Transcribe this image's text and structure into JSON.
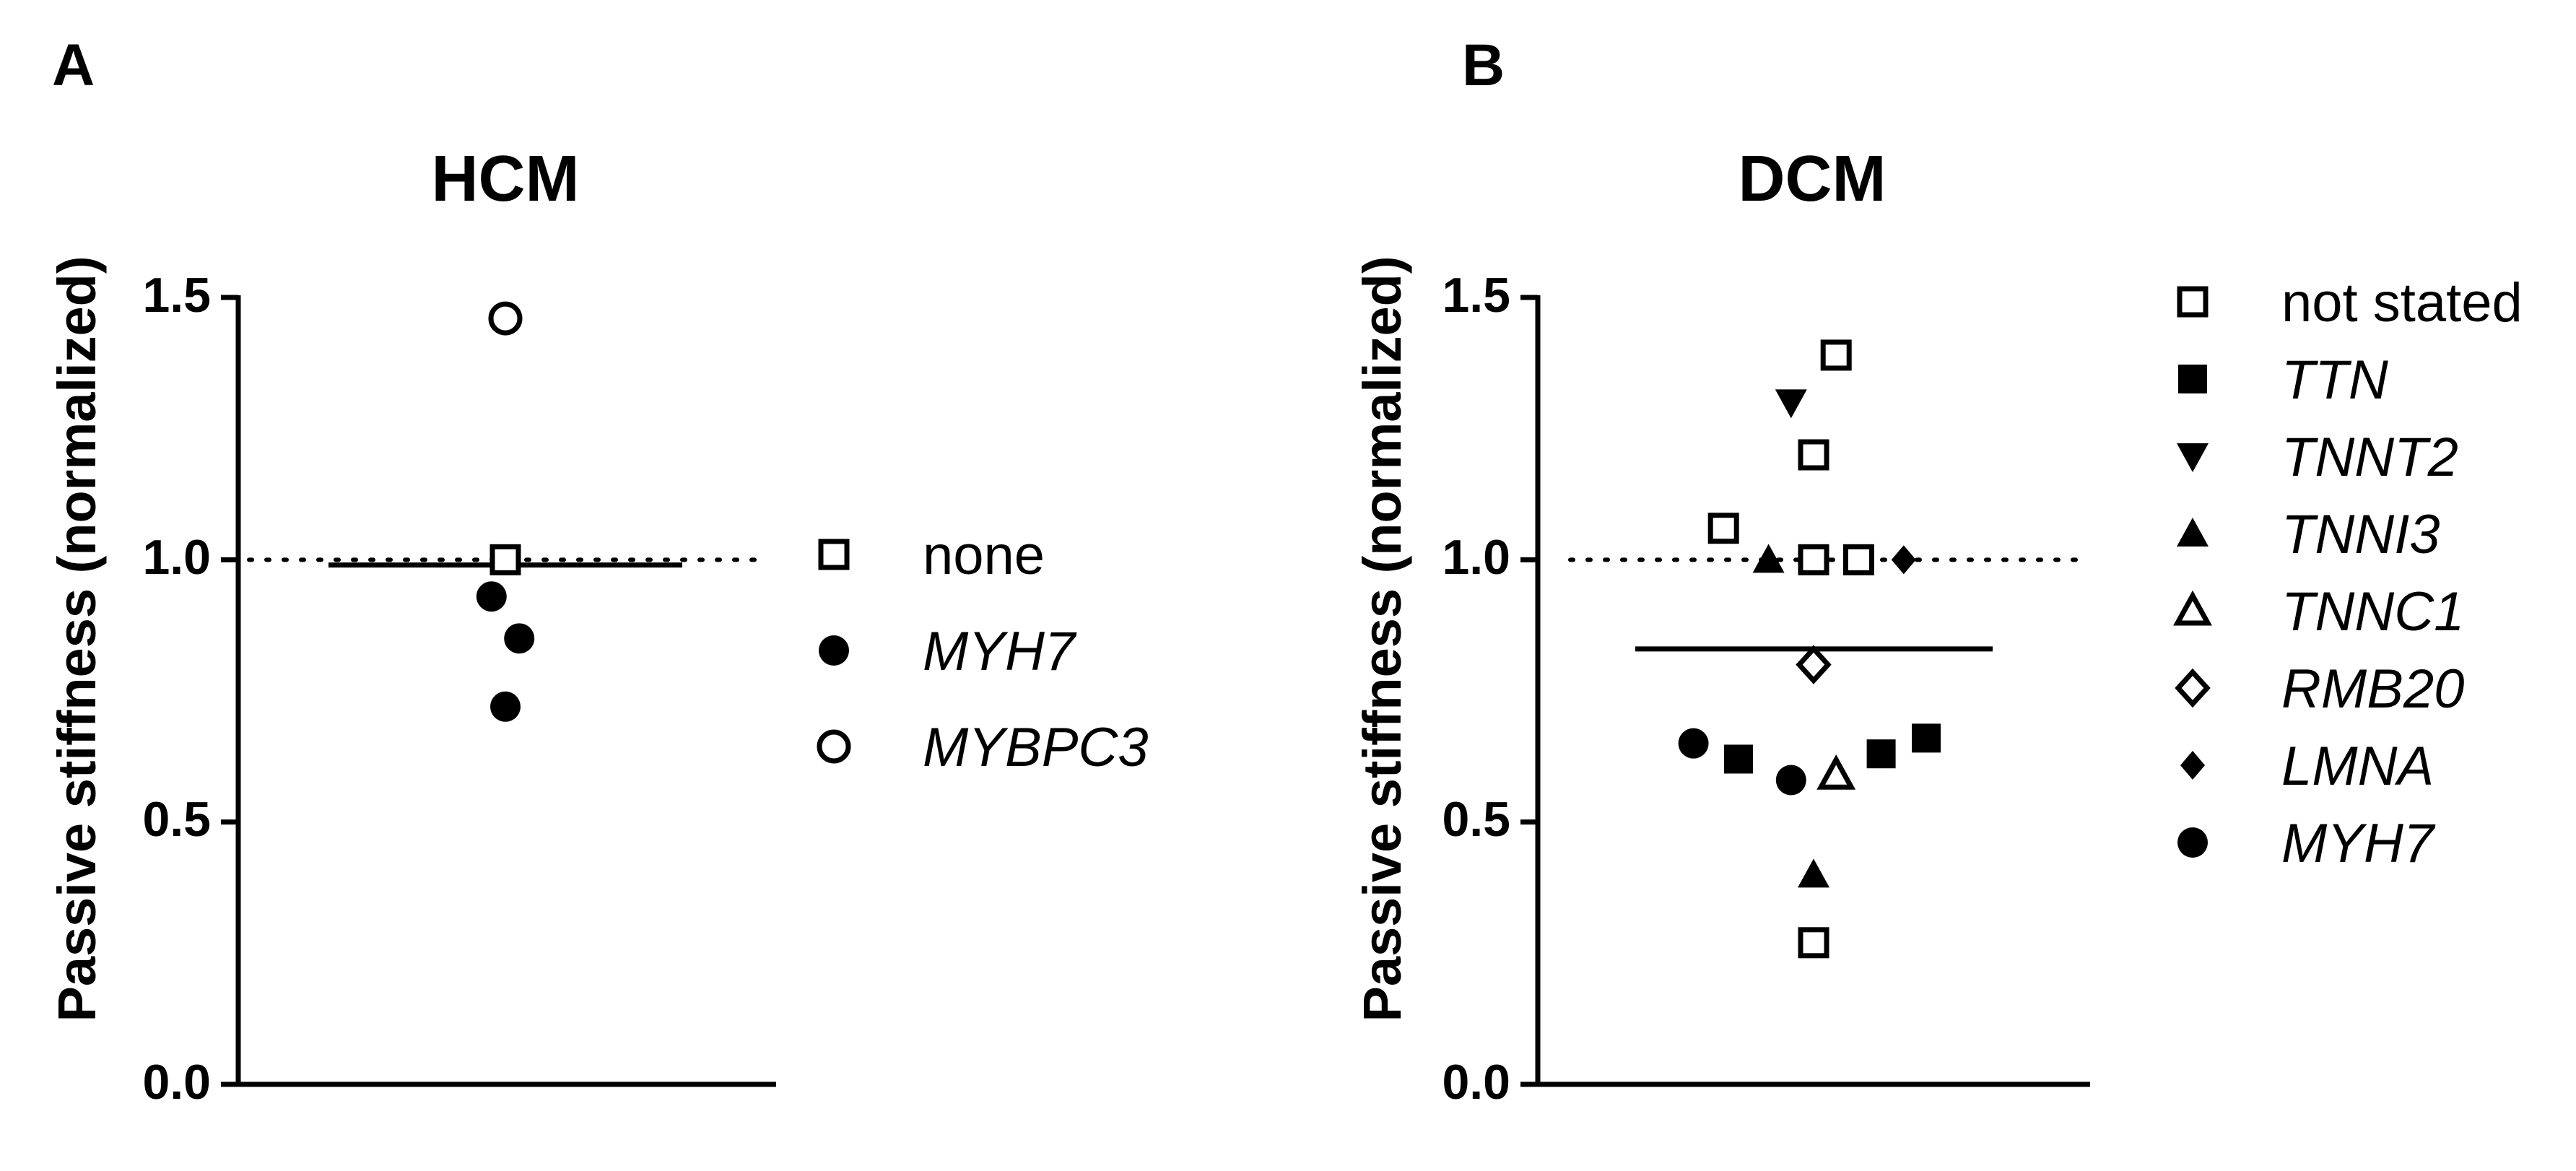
{
  "colors": {
    "marker": "#000000",
    "background": "#ffffff"
  },
  "chart_data": [
    {
      "panel": "A",
      "type": "scatter",
      "title": "HCM",
      "ylabel": "Passive stiffness (normalized)",
      "xlabel": "",
      "ylim": [
        0,
        1.5
      ],
      "yticks": [
        "0.0",
        "0.5",
        "1.0",
        "1.5"
      ],
      "reference_line": 1.0,
      "mean": 0.99,
      "legend": [
        {
          "label": "none",
          "marker": "open-square",
          "italic": false
        },
        {
          "label": "MYH7",
          "marker": "filled-circle",
          "italic": true
        },
        {
          "label": "MYBPC3",
          "marker": "open-circle",
          "italic": true
        }
      ],
      "points": [
        {
          "group": "none",
          "marker": "open-square",
          "x": 0.0,
          "y": 1.0
        },
        {
          "group": "MYH7",
          "marker": "filled-circle",
          "x": -0.12,
          "y": 0.93
        },
        {
          "group": "MYH7",
          "marker": "filled-circle",
          "x": 0.12,
          "y": 0.85
        },
        {
          "group": "MYH7",
          "marker": "filled-circle",
          "x": 0.0,
          "y": 0.72
        },
        {
          "group": "MYBPC3",
          "marker": "open-circle",
          "x": 0.0,
          "y": 1.46
        }
      ]
    },
    {
      "panel": "B",
      "type": "scatter",
      "title": "DCM",
      "ylabel": "Passive stiffness (normalized)",
      "xlabel": "",
      "ylim": [
        0,
        1.5
      ],
      "yticks": [
        "0.0",
        "0.5",
        "1.0",
        "1.5"
      ],
      "reference_line": 1.0,
      "mean": 0.83,
      "legend": [
        {
          "label": "not stated",
          "marker": "open-square",
          "italic": false
        },
        {
          "label": "TTN",
          "marker": "filled-square",
          "italic": true
        },
        {
          "label": "TNNT2",
          "marker": "filled-down-triangle",
          "italic": true
        },
        {
          "label": "TNNI3",
          "marker": "filled-up-triangle",
          "italic": true
        },
        {
          "label": "TNNC1",
          "marker": "open-up-triangle",
          "italic": true
        },
        {
          "label": "RMB20",
          "marker": "open-diamond",
          "italic": true
        },
        {
          "label": "LMNA",
          "marker": "filled-diamond",
          "italic": true
        },
        {
          "label": "MYH7",
          "marker": "filled-circle",
          "italic": true
        }
      ],
      "points": [
        {
          "group": "not stated",
          "marker": "open-square",
          "x": 0.12,
          "y": 1.39
        },
        {
          "group": "not stated",
          "marker": "open-square",
          "x": 0.0,
          "y": 1.2
        },
        {
          "group": "not stated",
          "marker": "open-square",
          "x": -0.48,
          "y": 1.06
        },
        {
          "group": "not stated",
          "marker": "open-square",
          "x": 0.0,
          "y": 1.0
        },
        {
          "group": "not stated",
          "marker": "open-square",
          "x": 0.24,
          "y": 1.0
        },
        {
          "group": "not stated",
          "marker": "open-square",
          "x": 0.0,
          "y": 0.27
        },
        {
          "group": "TNNT2",
          "marker": "filled-down-triangle",
          "x": -0.12,
          "y": 1.3
        },
        {
          "group": "TNNI3",
          "marker": "filled-up-triangle",
          "x": -0.24,
          "y": 1.0
        },
        {
          "group": "TNNI3",
          "marker": "filled-up-triangle",
          "x": 0.0,
          "y": 0.4
        },
        {
          "group": "LMNA",
          "marker": "filled-diamond",
          "x": 0.48,
          "y": 1.0
        },
        {
          "group": "RMB20",
          "marker": "open-diamond",
          "x": 0.0,
          "y": 0.8
        },
        {
          "group": "MYH7",
          "marker": "filled-circle",
          "x": -0.64,
          "y": 0.65
        },
        {
          "group": "MYH7",
          "marker": "filled-circle",
          "x": -0.12,
          "y": 0.58
        },
        {
          "group": "TTN",
          "marker": "filled-square",
          "x": -0.4,
          "y": 0.62
        },
        {
          "group": "TTN",
          "marker": "filled-square",
          "x": 0.36,
          "y": 0.63
        },
        {
          "group": "TTN",
          "marker": "filled-square",
          "x": 0.6,
          "y": 0.66
        },
        {
          "group": "TNNC1",
          "marker": "open-up-triangle",
          "x": 0.12,
          "y": 0.59
        }
      ]
    }
  ]
}
